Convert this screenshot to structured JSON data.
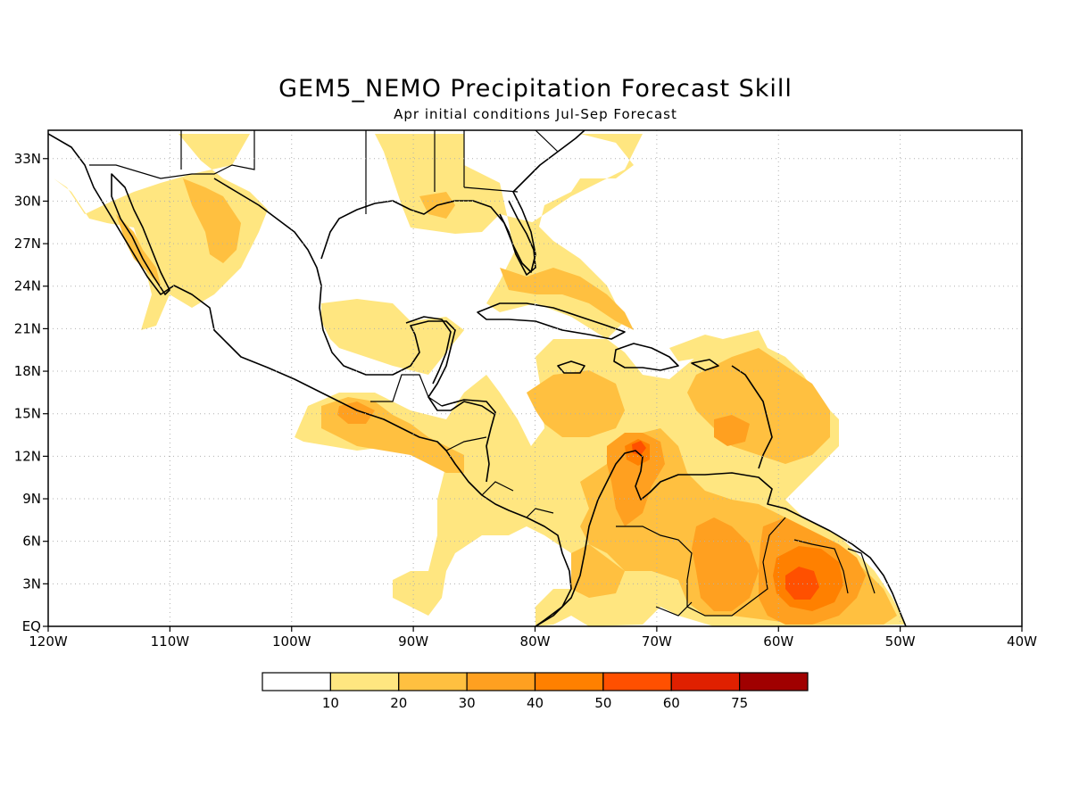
{
  "title": "GEM5_NEMO Precipitation Forecast Skill",
  "subtitle": "Apr initial conditions  Jul-Sep Forecast",
  "map": {
    "lon_range": [
      -120,
      -40
    ],
    "lat_range": [
      0,
      35
    ],
    "lon_ticks": [
      {
        "value": -120,
        "label": "120W"
      },
      {
        "value": -110,
        "label": "110W"
      },
      {
        "value": -100,
        "label": "100W"
      },
      {
        "value": -90,
        "label": "90W"
      },
      {
        "value": -80,
        "label": "80W"
      },
      {
        "value": -70,
        "label": "70W"
      },
      {
        "value": -60,
        "label": "60W"
      },
      {
        "value": -50,
        "label": "50W"
      },
      {
        "value": -40,
        "label": "40W"
      }
    ],
    "lat_ticks": [
      {
        "value": 0,
        "label": "EQ"
      },
      {
        "value": 3,
        "label": "3N"
      },
      {
        "value": 6,
        "label": "6N"
      },
      {
        "value": 9,
        "label": "9N"
      },
      {
        "value": 12,
        "label": "12N"
      },
      {
        "value": 15,
        "label": "15N"
      },
      {
        "value": 18,
        "label": "18N"
      },
      {
        "value": 21,
        "label": "21N"
      },
      {
        "value": 24,
        "label": "24N"
      },
      {
        "value": 27,
        "label": "27N"
      },
      {
        "value": 30,
        "label": "30N"
      },
      {
        "value": 33,
        "label": "33N"
      }
    ],
    "grid": true
  },
  "colorbar": {
    "labels": [
      "10",
      "20",
      "30",
      "40",
      "50",
      "60",
      "75"
    ],
    "colors": [
      "#ffffff",
      "#ffe680",
      "#ffc040",
      "#ffa020",
      "#ff8000",
      "#ff5000",
      "#e02000",
      "#a00000"
    ]
  }
}
